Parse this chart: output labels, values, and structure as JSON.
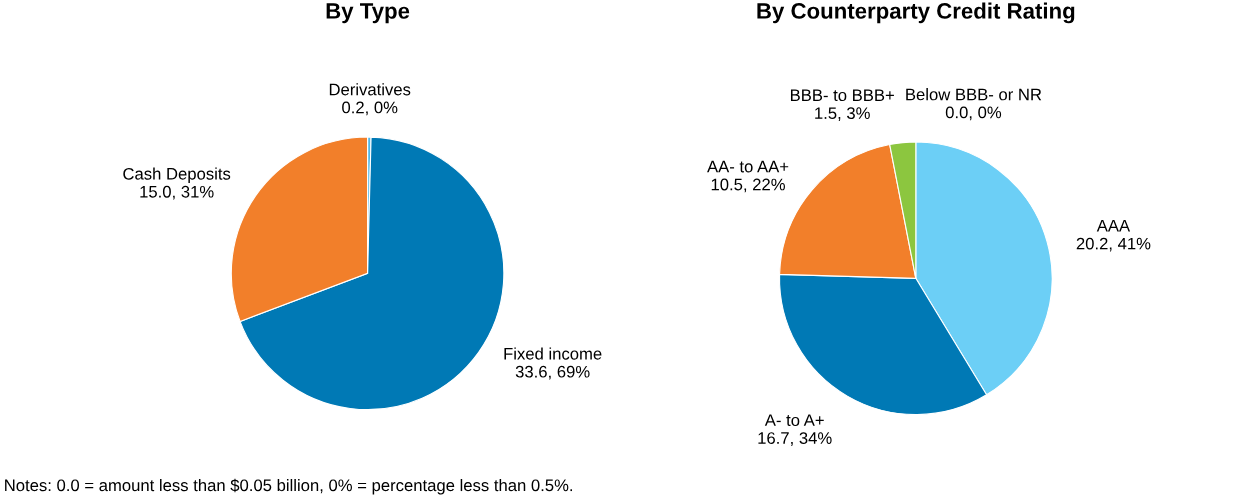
{
  "chart_data": [
    {
      "type": "pie",
      "title": "By Type",
      "categories": [
        "Derivatives",
        "Fixed income",
        "Cash Deposits"
      ],
      "values": [
        0.2,
        33.6,
        15.0
      ],
      "value_labels": [
        "0.2, 0%",
        "33.6, 69%",
        "15.0, 31%"
      ],
      "colors": [
        "#4fb8e8",
        "#0079b5",
        "#f27f2a"
      ],
      "annotations": [
        "Notes: 0.0 = amount less than $0.05 billion, 0% = percentage less than 0.5%."
      ]
    },
    {
      "type": "pie",
      "title": "By Counterparty Credit Rating",
      "categories": [
        "Below BBB- or NR",
        "AAA",
        "A- to A+",
        "AA- to AA+",
        "BBB- to BBB+"
      ],
      "values": [
        0.0,
        20.2,
        16.7,
        10.5,
        1.5
      ],
      "value_labels": [
        "0.0, 0%",
        "20.2, 41%",
        "16.7, 34%",
        "10.5, 22%",
        "1.5, 3%"
      ],
      "colors": [
        "#a6a6a6",
        "#6ccff6",
        "#0079b5",
        "#f27f2a",
        "#8cc63f"
      ]
    }
  ]
}
